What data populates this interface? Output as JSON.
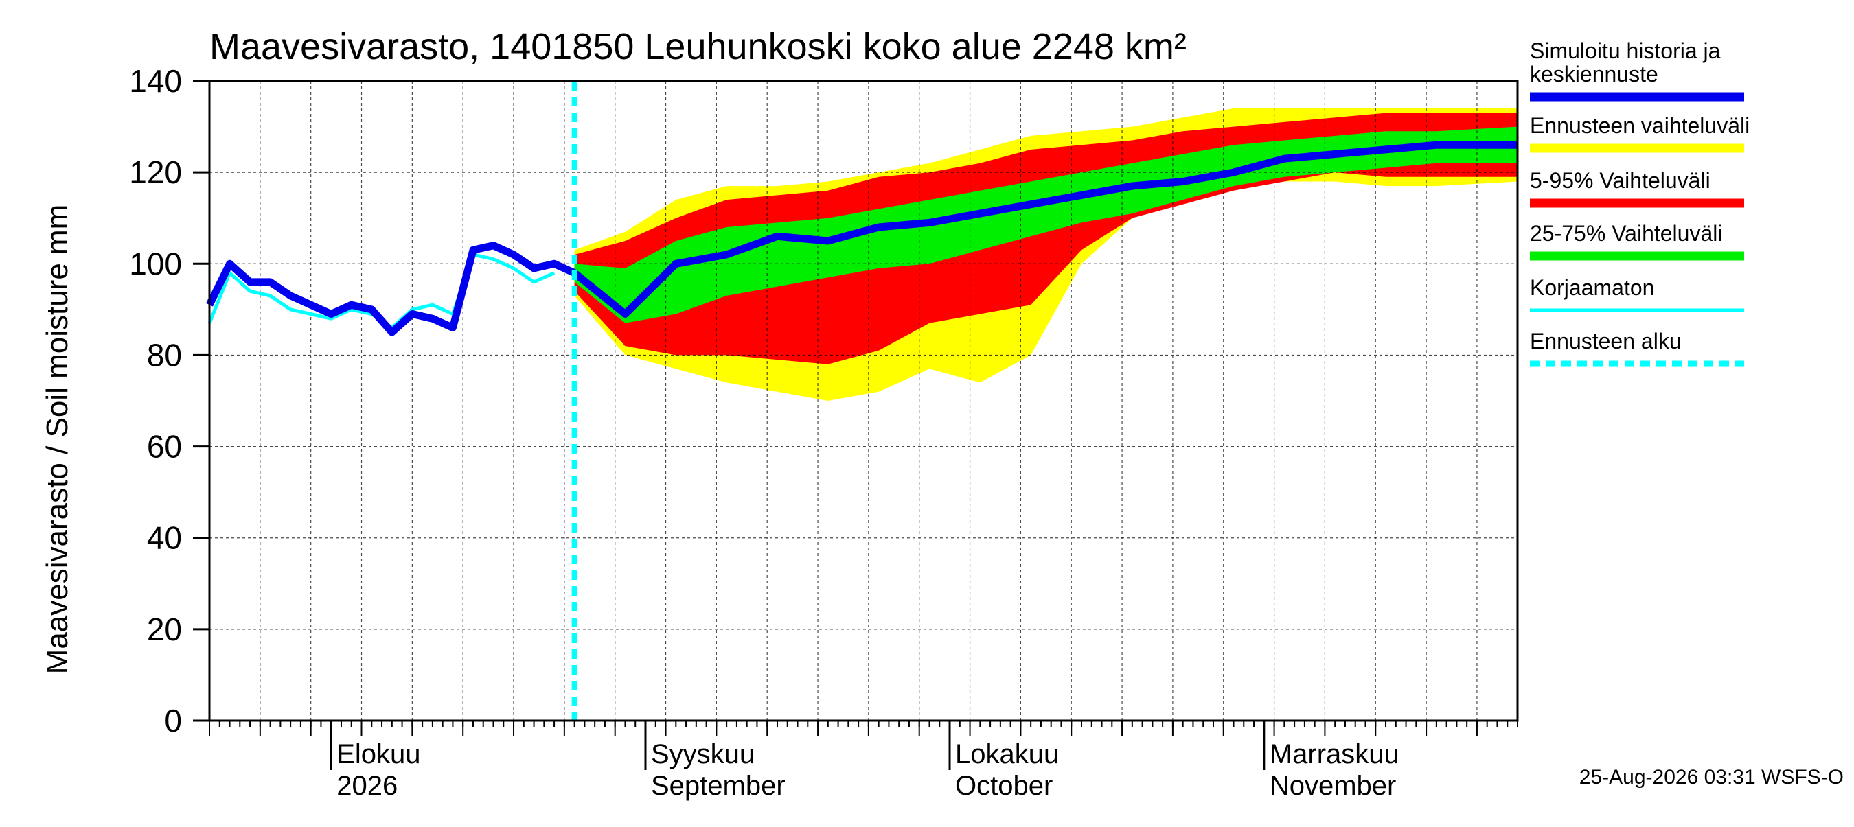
{
  "chart_data": {
    "type": "area",
    "title": "Maavesivarasto, 1401850 Leuhunkoski koko alue 2248 km²",
    "ylabel": "Maavesivarasto / Soil moisture   mm",
    "xlabel": "",
    "ylim": [
      0,
      140
    ],
    "yticks": [
      0,
      20,
      40,
      60,
      80,
      100,
      120,
      140
    ],
    "xlim": [
      "2026-07-20",
      "2026-11-26"
    ],
    "grid": true,
    "legend_position": "right",
    "forecast_start": "2026-08-25",
    "month_labels": [
      {
        "date": "2026-08-01",
        "line1": "Elokuu",
        "line2": "2026"
      },
      {
        "date": "2026-09-01",
        "line1": "Syyskuu",
        "line2": "September"
      },
      {
        "date": "2026-10-01",
        "line1": "Lokakuu",
        "line2": "October"
      },
      {
        "date": "2026-11-01",
        "line1": "Marraskuu",
        "line2": "November"
      }
    ],
    "timestamp": "25-Aug-2026 03:31 WSFS-O",
    "colors": {
      "history": "#0000ee",
      "range": "#ffff00",
      "p5_95": "#ff0000",
      "p25_75": "#00ee00",
      "uncorrected": "#00ffff",
      "forecast_start": "#00ffff"
    },
    "legend": [
      {
        "label": "Simuloitu historia ja keskiennuste",
        "key": "history"
      },
      {
        "label": "Ennusteen vaihteluväli",
        "key": "range"
      },
      {
        "label": "5-95% Vaihteluväli",
        "key": "p5_95"
      },
      {
        "label": "25-75% Vaihteluväli",
        "key": "p25_75"
      },
      {
        "label": "Korjaamaton",
        "key": "uncorrected"
      },
      {
        "label": "Ennusteen alku",
        "key": "forecast_start"
      }
    ],
    "history_dates": [
      "2026-07-20",
      "2026-07-22",
      "2026-07-24",
      "2026-07-26",
      "2026-07-28",
      "2026-07-30",
      "2026-08-01",
      "2026-08-03",
      "2026-08-05",
      "2026-08-07",
      "2026-08-09",
      "2026-08-11",
      "2026-08-13",
      "2026-08-15",
      "2026-08-17",
      "2026-08-19",
      "2026-08-21",
      "2026-08-23",
      "2026-08-25"
    ],
    "history_values": [
      91,
      100,
      96,
      96,
      93,
      91,
      89,
      91,
      90,
      85,
      89,
      88,
      86,
      103,
      104,
      102,
      99,
      100,
      98
    ],
    "uncorrected_dates": [
      "2026-07-20",
      "2026-07-22",
      "2026-07-24",
      "2026-07-26",
      "2026-07-28",
      "2026-07-30",
      "2026-08-01",
      "2026-08-03",
      "2026-08-05",
      "2026-08-07",
      "2026-08-09",
      "2026-08-11",
      "2026-08-13",
      "2026-08-15",
      "2026-08-17",
      "2026-08-19",
      "2026-08-21",
      "2026-08-23"
    ],
    "uncorrected_values": [
      87,
      98,
      94,
      93,
      90,
      89,
      88,
      90,
      89,
      86,
      90,
      91,
      89,
      102,
      101,
      99,
      96,
      98
    ],
    "forecast_dates": [
      "2026-08-25",
      "2026-08-30",
      "2026-09-04",
      "2026-09-09",
      "2026-09-14",
      "2026-09-19",
      "2026-09-24",
      "2026-09-29",
      "2026-10-04",
      "2026-10-09",
      "2026-10-14",
      "2026-10-19",
      "2026-10-24",
      "2026-10-29",
      "2026-11-03",
      "2026-11-08",
      "2026-11-13",
      "2026-11-18",
      "2026-11-26"
    ],
    "range_min": [
      93,
      80,
      77,
      74,
      72,
      70,
      72,
      77,
      74,
      80,
      100,
      110,
      115,
      118,
      118,
      118,
      117,
      117,
      118
    ],
    "range_max": [
      103,
      107,
      114,
      117,
      117,
      118,
      120,
      122,
      125,
      128,
      129,
      130,
      132,
      134,
      134,
      134,
      134,
      134,
      134
    ],
    "p5_values": [
      94,
      82,
      80,
      80,
      79,
      78,
      81,
      87,
      89,
      91,
      103,
      110,
      113,
      116,
      118,
      120,
      119,
      119,
      119
    ],
    "p95_values": [
      102,
      105,
      110,
      114,
      115,
      116,
      119,
      120,
      122,
      125,
      126,
      127,
      129,
      130,
      131,
      132,
      133,
      133,
      133
    ],
    "p25_values": [
      96,
      87,
      89,
      93,
      95,
      97,
      99,
      100,
      103,
      106,
      109,
      111,
      114,
      117,
      119,
      120,
      121,
      122,
      122
    ],
    "p75_values": [
      100,
      99,
      105,
      108,
      109,
      110,
      112,
      114,
      116,
      118,
      120,
      122,
      124,
      126,
      127,
      128,
      129,
      129,
      130
    ],
    "median_values": [
      98,
      89,
      100,
      102,
      106,
      105,
      108,
      109,
      111,
      113,
      115,
      117,
      118,
      120,
      123,
      124,
      125,
      126,
      126
    ]
  }
}
